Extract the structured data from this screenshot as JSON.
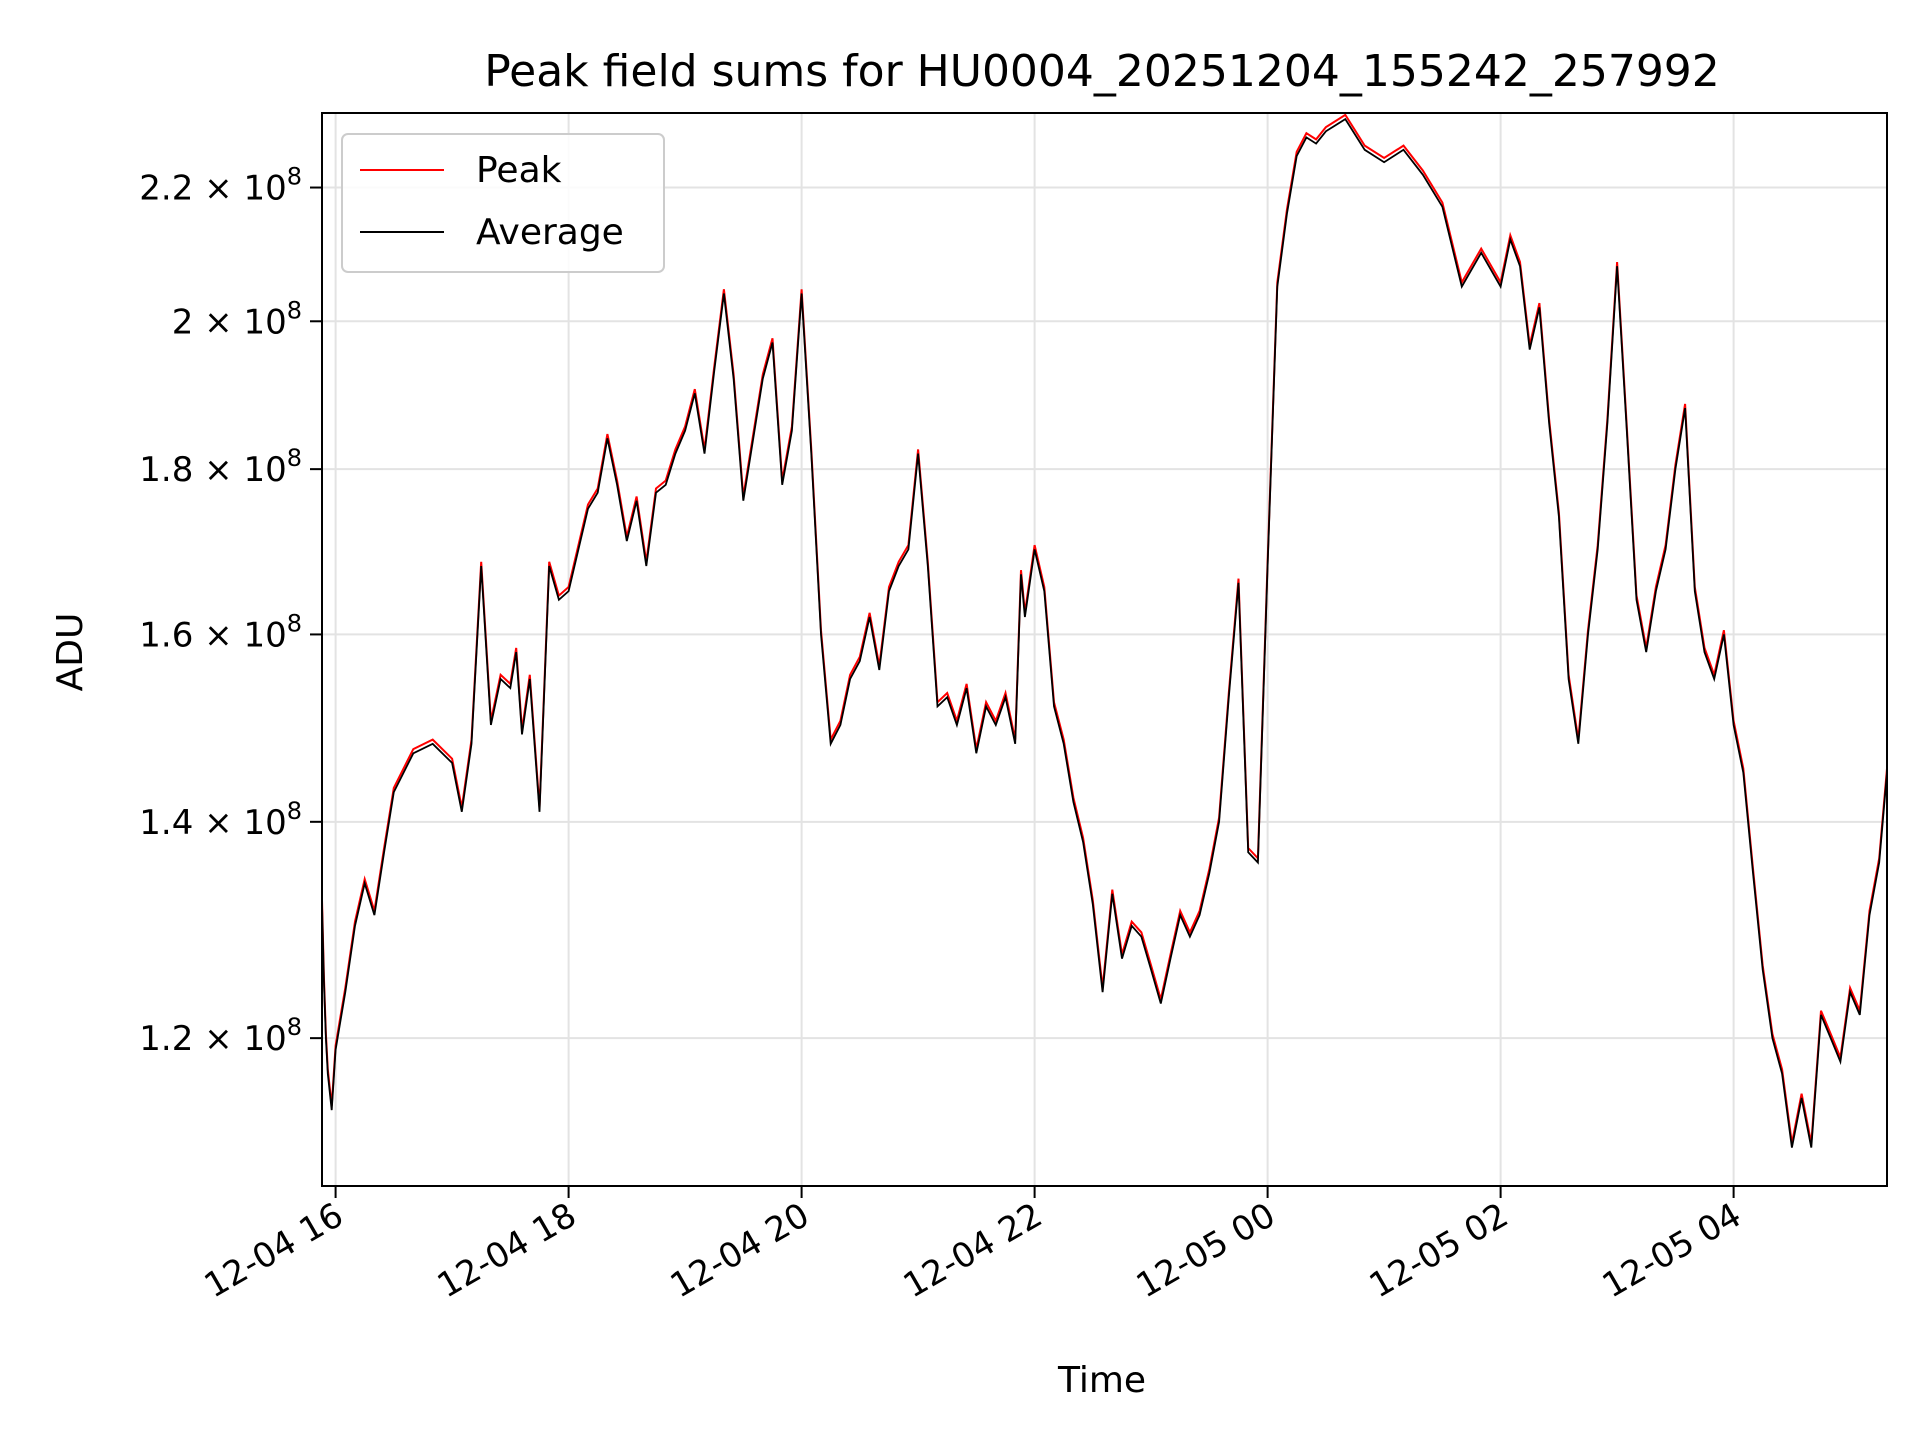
{
  "chart_data": {
    "type": "line",
    "title": "Peak field sums for HU0004_20251204_155242_257992",
    "xlabel": "Time",
    "ylabel": "ADU",
    "y_scale": "log",
    "ylim": [
      108000000,
      232000000
    ],
    "xlim": [
      "2025-12-04 15:53",
      "2025-12-05 05:19"
    ],
    "grid": true,
    "legend_position": "top-left",
    "x_ticks": [
      {
        "t": "2025-12-04 16:00",
        "label": "12-04 16"
      },
      {
        "t": "2025-12-04 18:00",
        "label": "12-04 18"
      },
      {
        "t": "2025-12-04 20:00",
        "label": "12-04 20"
      },
      {
        "t": "2025-12-04 22:00",
        "label": "12-04 22"
      },
      {
        "t": "2025-12-05 00:00",
        "label": "12-05 00"
      },
      {
        "t": "2025-12-05 02:00",
        "label": "12-05 02"
      },
      {
        "t": "2025-12-05 04:00",
        "label": "12-05 04"
      }
    ],
    "y_ticks": [
      {
        "v": 120000000,
        "mantissa": "1.2",
        "exp": "8"
      },
      {
        "v": 140000000,
        "mantissa": "1.4",
        "exp": "8"
      },
      {
        "v": 160000000,
        "mantissa": "1.6",
        "exp": "8"
      },
      {
        "v": 180000000,
        "mantissa": "1.8",
        "exp": "8"
      },
      {
        "v": 200000000,
        "mantissa": "2",
        "exp": "8"
      },
      {
        "v": 220000000,
        "mantissa": "2.2",
        "exp": "8"
      }
    ],
    "series": [
      {
        "name": "Peak",
        "color": "#ff0000",
        "offset_ratio": 1.003
      },
      {
        "name": "Average",
        "color": "#000000",
        "x": [
          "2025-12-04 15:53",
          "2025-12-04 15:54",
          "2025-12-04 15:55",
          "2025-12-04 15:56",
          "2025-12-04 15:58",
          "2025-12-04 16:00",
          "2025-12-04 16:02",
          "2025-12-04 16:05",
          "2025-12-04 16:10",
          "2025-12-04 16:15",
          "2025-12-04 16:20",
          "2025-12-04 16:25",
          "2025-12-04 16:30",
          "2025-12-04 16:40",
          "2025-12-04 16:50",
          "2025-12-04 17:00",
          "2025-12-04 17:05",
          "2025-12-04 17:10",
          "2025-12-04 17:15",
          "2025-12-04 17:20",
          "2025-12-04 17:25",
          "2025-12-04 17:30",
          "2025-12-04 17:33",
          "2025-12-04 17:36",
          "2025-12-04 17:40",
          "2025-12-04 17:45",
          "2025-12-04 17:50",
          "2025-12-04 17:55",
          "2025-12-04 18:00",
          "2025-12-04 18:10",
          "2025-12-04 18:15",
          "2025-12-04 18:20",
          "2025-12-04 18:25",
          "2025-12-04 18:30",
          "2025-12-04 18:35",
          "2025-12-04 18:40",
          "2025-12-04 18:45",
          "2025-12-04 18:50",
          "2025-12-04 18:55",
          "2025-12-04 19:00",
          "2025-12-04 19:05",
          "2025-12-04 19:10",
          "2025-12-04 19:15",
          "2025-12-04 19:20",
          "2025-12-04 19:25",
          "2025-12-04 19:30",
          "2025-12-04 19:40",
          "2025-12-04 19:45",
          "2025-12-04 19:50",
          "2025-12-04 19:55",
          "2025-12-04 20:00",
          "2025-12-04 20:05",
          "2025-12-04 20:10",
          "2025-12-04 20:15",
          "2025-12-04 20:20",
          "2025-12-04 20:25",
          "2025-12-04 20:30",
          "2025-12-04 20:35",
          "2025-12-04 20:40",
          "2025-12-04 20:45",
          "2025-12-04 20:50",
          "2025-12-04 20:55",
          "2025-12-04 21:00",
          "2025-12-04 21:05",
          "2025-12-04 21:10",
          "2025-12-04 21:15",
          "2025-12-04 21:20",
          "2025-12-04 21:25",
          "2025-12-04 21:30",
          "2025-12-04 21:35",
          "2025-12-04 21:40",
          "2025-12-04 21:45",
          "2025-12-04 21:50",
          "2025-12-04 21:53",
          "2025-12-04 21:55",
          "2025-12-04 22:00",
          "2025-12-04 22:05",
          "2025-12-04 22:10",
          "2025-12-04 22:15",
          "2025-12-04 22:20",
          "2025-12-04 22:25",
          "2025-12-04 22:30",
          "2025-12-04 22:35",
          "2025-12-04 22:40",
          "2025-12-04 22:45",
          "2025-12-04 22:50",
          "2025-12-04 22:55",
          "2025-12-04 23:00",
          "2025-12-04 23:05",
          "2025-12-04 23:10",
          "2025-12-04 23:15",
          "2025-12-04 23:20",
          "2025-12-04 23:25",
          "2025-12-04 23:30",
          "2025-12-04 23:35",
          "2025-12-04 23:40",
          "2025-12-04 23:45",
          "2025-12-04 23:50",
          "2025-12-04 23:55",
          "2025-12-05 00:00",
          "2025-12-05 00:05",
          "2025-12-05 00:10",
          "2025-12-05 00:15",
          "2025-12-05 00:20",
          "2025-12-05 00:25",
          "2025-12-05 00:30",
          "2025-12-05 00:40",
          "2025-12-05 00:50",
          "2025-12-05 01:00",
          "2025-12-05 01:10",
          "2025-12-05 01:20",
          "2025-12-05 01:30",
          "2025-12-05 01:40",
          "2025-12-05 01:50",
          "2025-12-05 02:00",
          "2025-12-05 02:05",
          "2025-12-05 02:10",
          "2025-12-05 02:15",
          "2025-12-05 02:20",
          "2025-12-05 02:25",
          "2025-12-05 02:30",
          "2025-12-05 02:35",
          "2025-12-05 02:40",
          "2025-12-05 02:45",
          "2025-12-05 02:50",
          "2025-12-05 02:55",
          "2025-12-05 03:00",
          "2025-12-05 03:05",
          "2025-12-05 03:10",
          "2025-12-05 03:15",
          "2025-12-05 03:20",
          "2025-12-05 03:25",
          "2025-12-05 03:30",
          "2025-12-05 03:35",
          "2025-12-05 03:40",
          "2025-12-05 03:45",
          "2025-12-05 03:50",
          "2025-12-05 03:55",
          "2025-12-05 04:00",
          "2025-12-05 04:05",
          "2025-12-05 04:10",
          "2025-12-05 04:15",
          "2025-12-05 04:20",
          "2025-12-05 04:25",
          "2025-12-05 04:30",
          "2025-12-05 04:35",
          "2025-12-05 04:40",
          "2025-12-05 04:45",
          "2025-12-05 04:50",
          "2025-12-05 04:55",
          "2025-12-05 05:00",
          "2025-12-05 05:05",
          "2025-12-05 05:10",
          "2025-12-05 05:15",
          "2025-12-05 05:19"
        ],
        "y": [
          132000000,
          125000000,
          120000000,
          117000000,
          114000000,
          119000000,
          121000000,
          124000000,
          130000000,
          134000000,
          131000000,
          137000000,
          143000000,
          147000000,
          148000000,
          146000000,
          141000000,
          148000000,
          168000000,
          150000000,
          155000000,
          154000000,
          158000000,
          149000000,
          155000000,
          141000000,
          168000000,
          164000000,
          165000000,
          175000000,
          177000000,
          184000000,
          178000000,
          171000000,
          176000000,
          168000000,
          177000000,
          178000000,
          182000000,
          185000000,
          190000000,
          182000000,
          193000000,
          204000000,
          192000000,
          176000000,
          192000000,
          197000000,
          178000000,
          185000000,
          204000000,
          182000000,
          160000000,
          148000000,
          150000000,
          155000000,
          157000000,
          162000000,
          156000000,
          165000000,
          168000000,
          170000000,
          182000000,
          168000000,
          152000000,
          153000000,
          150000000,
          154000000,
          147000000,
          152000000,
          150000000,
          153000000,
          148000000,
          167000000,
          162000000,
          170000000,
          165000000,
          152000000,
          148000000,
          142000000,
          138000000,
          132000000,
          124000000,
          133000000,
          127000000,
          130000000,
          129000000,
          126000000,
          123000000,
          127000000,
          131000000,
          129000000,
          131000000,
          135000000,
          140000000,
          153000000,
          166000000,
          137000000,
          136000000,
          168000000,
          205000000,
          216000000,
          225000000,
          228000000,
          227000000,
          229000000,
          231000000,
          226000000,
          224000000,
          226000000,
          222000000,
          217000000,
          205000000,
          210000000,
          205000000,
          212000000,
          208000000,
          196000000,
          202000000,
          186000000,
          174000000,
          155000000,
          148000000,
          160000000,
          170000000,
          186000000,
          208000000,
          185000000,
          164000000,
          158000000,
          165000000,
          170000000,
          180000000,
          188000000,
          165000000,
          158000000,
          155000000,
          160000000,
          150000000,
          145000000,
          135000000,
          126000000,
          120000000,
          117000000,
          111000000,
          115000000,
          111000000,
          122000000,
          120000000,
          118000000,
          124000000,
          122000000,
          131000000,
          136000000,
          145000000
        ]
      }
    ]
  }
}
